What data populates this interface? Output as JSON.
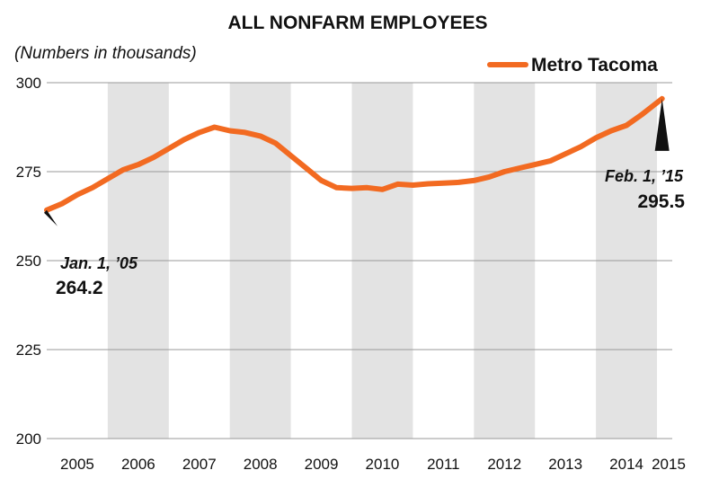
{
  "chart_data": {
    "type": "line",
    "title": "ALL NONFARM EMPLOYEES",
    "subtitle": "(Numbers in thousands)",
    "xlabel": "",
    "ylabel": "",
    "ylim": [
      200,
      300
    ],
    "y_ticks": [
      "200",
      "225",
      "250",
      "275",
      "300"
    ],
    "x_ticks": [
      "2005",
      "2006",
      "2007",
      "2008",
      "2009",
      "2010",
      "2011",
      "2012",
      "2013",
      "2014",
      "2015"
    ],
    "grid": "horizontal",
    "alternating_year_bands": true,
    "legend_position": "top-right",
    "colors": {
      "line": "#f26a21",
      "band": "#e3e3e3",
      "grid": "#999999"
    },
    "series": [
      {
        "name": "Metro Tacoma",
        "x": [
          "2005-01",
          "2005-04",
          "2005-07",
          "2005-10",
          "2006-01",
          "2006-04",
          "2006-07",
          "2006-10",
          "2007-01",
          "2007-04",
          "2007-07",
          "2007-10",
          "2008-01",
          "2008-04",
          "2008-07",
          "2008-10",
          "2009-01",
          "2009-04",
          "2009-07",
          "2009-10",
          "2010-01",
          "2010-04",
          "2010-07",
          "2010-10",
          "2011-01",
          "2011-04",
          "2011-07",
          "2011-10",
          "2012-01",
          "2012-04",
          "2012-07",
          "2012-10",
          "2013-01",
          "2013-04",
          "2013-07",
          "2013-10",
          "2014-01",
          "2014-04",
          "2014-07",
          "2014-10",
          "2015-02"
        ],
        "values": [
          264.2,
          266.0,
          268.5,
          270.5,
          273.0,
          275.5,
          277.0,
          279.0,
          281.5,
          284.0,
          286.0,
          287.5,
          286.5,
          286.0,
          285.0,
          283.0,
          279.5,
          276.0,
          272.5,
          270.5,
          270.3,
          270.5,
          270.0,
          271.5,
          271.2,
          271.6,
          271.8,
          272.0,
          272.5,
          273.5,
          275.0,
          276.0,
          277.0,
          278.0,
          280.0,
          282.0,
          284.5,
          286.5,
          288.0,
          291.0,
          295.5
        ]
      }
    ],
    "annotations": [
      {
        "date": "Jan. 1, ’05",
        "value": "264.2"
      },
      {
        "date": "Feb. 1, ’15",
        "value": "295.5"
      }
    ]
  }
}
